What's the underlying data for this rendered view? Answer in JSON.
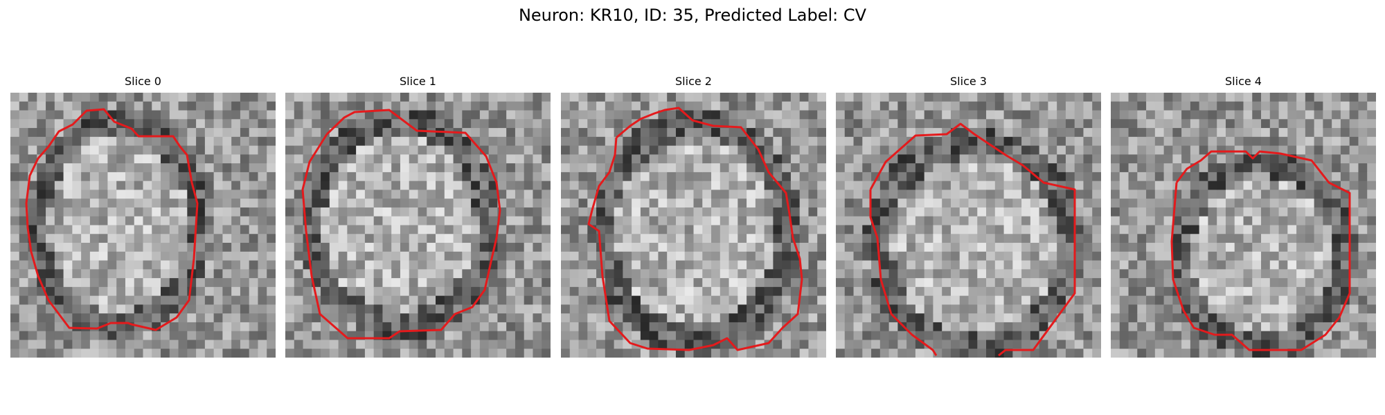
{
  "figure": {
    "title": "Neuron: KR10, ID: 35, Predicted Label: CV",
    "contour_color": "#e41a1c"
  },
  "slices": [
    {
      "title": "Slice 0"
    },
    {
      "title": "Slice 1"
    },
    {
      "title": "Slice 2"
    },
    {
      "title": "Slice 3"
    },
    {
      "title": "Slice 4"
    }
  ]
}
